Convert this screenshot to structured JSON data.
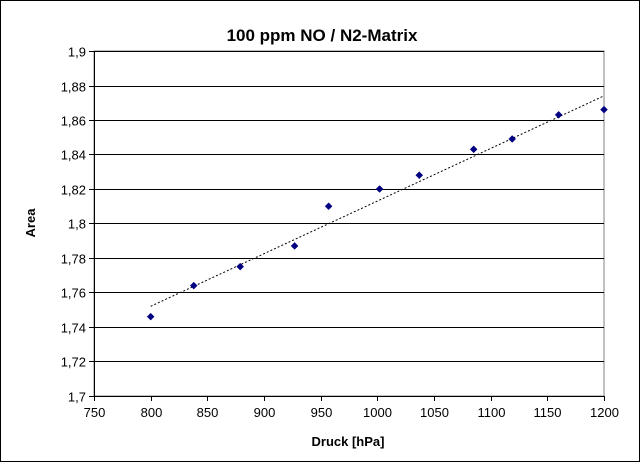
{
  "chart_data": {
    "type": "scatter",
    "title": "100 ppm NO / N2-Matrix",
    "xlabel": "Druck [hPa]",
    "ylabel": "Area",
    "xlim": [
      750,
      1200
    ],
    "ylim": [
      1.7,
      1.9
    ],
    "x_ticks": [
      "750",
      "800",
      "850",
      "900",
      "950",
      "1000",
      "1050",
      "1100",
      "1150",
      "1200"
    ],
    "x_tick_values": [
      750,
      800,
      850,
      900,
      950,
      1000,
      1050,
      1100,
      1150,
      1200
    ],
    "y_ticks": [
      "1,7",
      "1,72",
      "1,74",
      "1,76",
      "1,78",
      "1,8",
      "1,82",
      "1,84",
      "1,86",
      "1,88",
      "1,9"
    ],
    "y_tick_values": [
      1.7,
      1.72,
      1.74,
      1.76,
      1.78,
      1.8,
      1.82,
      1.84,
      1.86,
      1.88,
      1.9
    ],
    "grid": "horizontal",
    "series": [
      {
        "x": [
          800,
          838,
          879,
          927,
          957,
          1002,
          1037,
          1085,
          1119,
          1160,
          1200
        ],
        "y": [
          1.746,
          1.764,
          1.775,
          1.787,
          1.81,
          1.82,
          1.828,
          1.843,
          1.849,
          1.863,
          1.866
        ],
        "color": "#000080",
        "marker": "diamond"
      }
    ],
    "trendline": {
      "type": "linear",
      "x": [
        800,
        1200
      ],
      "y": [
        1.752,
        1.874
      ],
      "style": "dotted",
      "color": "#000000"
    }
  }
}
